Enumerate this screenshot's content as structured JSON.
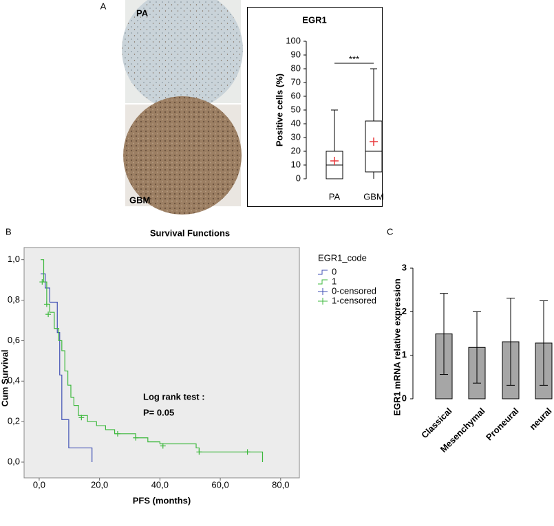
{
  "chart_data": [
    {
      "type": "box",
      "panel": "A",
      "title": "EGR1",
      "y_label": "Positive cells (%)",
      "image_labels": [
        "PA",
        "GBM"
      ],
      "annotation": "***",
      "categories": [
        "PA",
        "GBM"
      ],
      "boxes": [
        {
          "min": 0,
          "q1": 0,
          "median": 10,
          "q3": 20,
          "max": 50,
          "mean": 13
        },
        {
          "min": 0,
          "q1": 5,
          "median": 20,
          "q3": 42,
          "max": 80,
          "mean": 27
        }
      ],
      "color": "#000000",
      "mean_color": "#e8393c",
      "ylim": [
        0,
        100
      ],
      "yticks": [
        0,
        10,
        20,
        30,
        40,
        50,
        60,
        70,
        80,
        90,
        100
      ]
    },
    {
      "type": "line",
      "panel": "B",
      "title": "Survival Functions",
      "x_label": "PFS  (months)",
      "y_label": "Cum Survival",
      "step": true,
      "legend_title": "EGR1_code",
      "annotation": [
        "Log rank test :",
        "P= 0.05"
      ],
      "series": [
        {
          "name": "0",
          "color": "#3f4fb4",
          "x": [
            0.5,
            2,
            3.5,
            6,
            6.8,
            7.5,
            9.8,
            17.5
          ],
          "values": [
            0.93,
            0.86,
            0.79,
            0.64,
            0.43,
            0.21,
            0.07,
            0.0
          ]
        },
        {
          "name": "1",
          "color": "#3cb83c",
          "x": [
            0.5,
            1.5,
            2.5,
            3.5,
            5,
            6.5,
            7.5,
            8.5,
            9.5,
            10.5,
            11.5,
            13,
            16,
            19,
            22,
            25,
            32,
            36,
            40,
            52,
            53,
            74
          ],
          "values": [
            1.0,
            0.89,
            0.78,
            0.74,
            0.66,
            0.6,
            0.55,
            0.45,
            0.38,
            0.32,
            0.28,
            0.23,
            0.2,
            0.18,
            0.16,
            0.14,
            0.12,
            0.1,
            0.09,
            0.07,
            0.05,
            0.0
          ]
        }
      ],
      "censored": [
        {
          "name": "0-censored",
          "color": "#3f4fb4",
          "x": [],
          "values": []
        },
        {
          "name": "1-censored",
          "color": "#3cb83c",
          "x": [
            1,
            2.5,
            3,
            14,
            26,
            32,
            41,
            53,
            69
          ],
          "values": [
            0.89,
            0.78,
            0.73,
            0.22,
            0.14,
            0.12,
            0.08,
            0.05,
            0.05
          ]
        }
      ],
      "xlim": [
        -5,
        86.2
      ],
      "ylim": [
        -0.078,
        1.06
      ],
      "xticks": [
        {
          "value": 0,
          "label": "0,0"
        },
        {
          "value": 20,
          "label": "20,0"
        },
        {
          "value": 40,
          "label": "40,0"
        },
        {
          "value": 60,
          "label": "60,0"
        },
        {
          "value": 80,
          "label": "80,0"
        }
      ],
      "yticks": [
        {
          "value": 0,
          "label": "0,0"
        },
        {
          "value": 0.2,
          "label": "0,2"
        },
        {
          "value": 0.4,
          "label": "0,4"
        },
        {
          "value": 0.6,
          "label": "0,6"
        },
        {
          "value": 0.8,
          "label": "0,8"
        },
        {
          "value": 1,
          "label": "1,0"
        }
      ]
    },
    {
      "type": "bar",
      "panel": "C",
      "y_label": "EGR1 mRNA relative expression",
      "categories": [
        "Classical",
        "Mesenchymal",
        "Proneural",
        "neural"
      ],
      "values": [
        1.49,
        1.18,
        1.31,
        1.28
      ],
      "errors": [
        0.93,
        0.82,
        1.0,
        0.97
      ],
      "color": "#a6a6a6",
      "ylim": [
        0,
        3
      ],
      "yticks": [
        0,
        1,
        2,
        3
      ]
    }
  ]
}
